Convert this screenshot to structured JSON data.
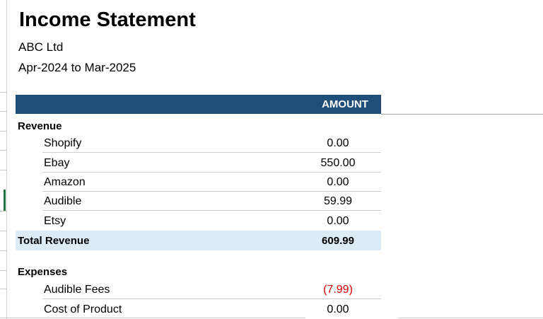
{
  "sheet": {
    "title": "Income Statement",
    "company": "ABC Ltd",
    "period": "Apr-2024 to Mar-2025"
  },
  "header": {
    "amount_label": "AMOUNT",
    "bar_color": "#1f4e79"
  },
  "revenue": {
    "heading": "Revenue",
    "items": [
      {
        "label": "Shopify",
        "amount": "0.00"
      },
      {
        "label": "Ebay",
        "amount": "550.00"
      },
      {
        "label": "Amazon",
        "amount": "0.00"
      },
      {
        "label": "Audible",
        "amount": "59.99"
      },
      {
        "label": "Etsy",
        "amount": "0.00"
      }
    ],
    "total_label": "Total Revenue",
    "total_amount": "609.99",
    "total_bg": "#ddebf7"
  },
  "expenses": {
    "heading": "Expenses",
    "items": [
      {
        "label": "Audible Fees",
        "amount": "(7.99)"
      },
      {
        "label": "Cost of Product",
        "amount": "0.00"
      }
    ]
  },
  "colors": {
    "negative": "#e00000"
  }
}
